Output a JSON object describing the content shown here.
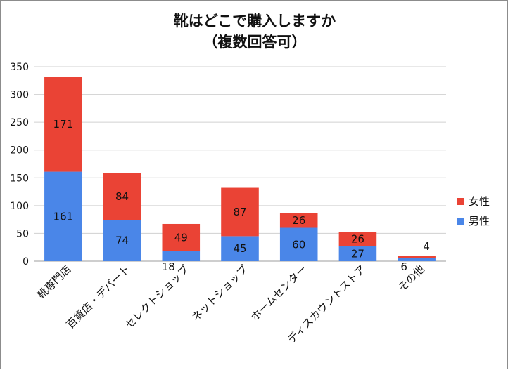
{
  "chart_data": {
    "type": "bar",
    "stacked": true,
    "title": "靴はどこで購入しますか",
    "subtitle": "（複数回答可）",
    "categories": [
      "靴専門店",
      "百貨店・デパート",
      "セレクトショップ",
      "ネットショップ",
      "ホームセンター",
      "ディスカウントストア",
      "その他"
    ],
    "series": [
      {
        "name": "男性",
        "values": [
          161,
          74,
          18,
          45,
          60,
          27,
          6
        ],
        "color": "#4a86e8"
      },
      {
        "name": "女性",
        "values": [
          171,
          84,
          49,
          87,
          26,
          26,
          4
        ],
        "color": "#ea4335"
      }
    ],
    "ylim": [
      0,
      350
    ],
    "yticks": [
      0,
      50,
      100,
      150,
      200,
      250,
      300,
      350
    ],
    "grid": true,
    "legend_position": "right"
  }
}
